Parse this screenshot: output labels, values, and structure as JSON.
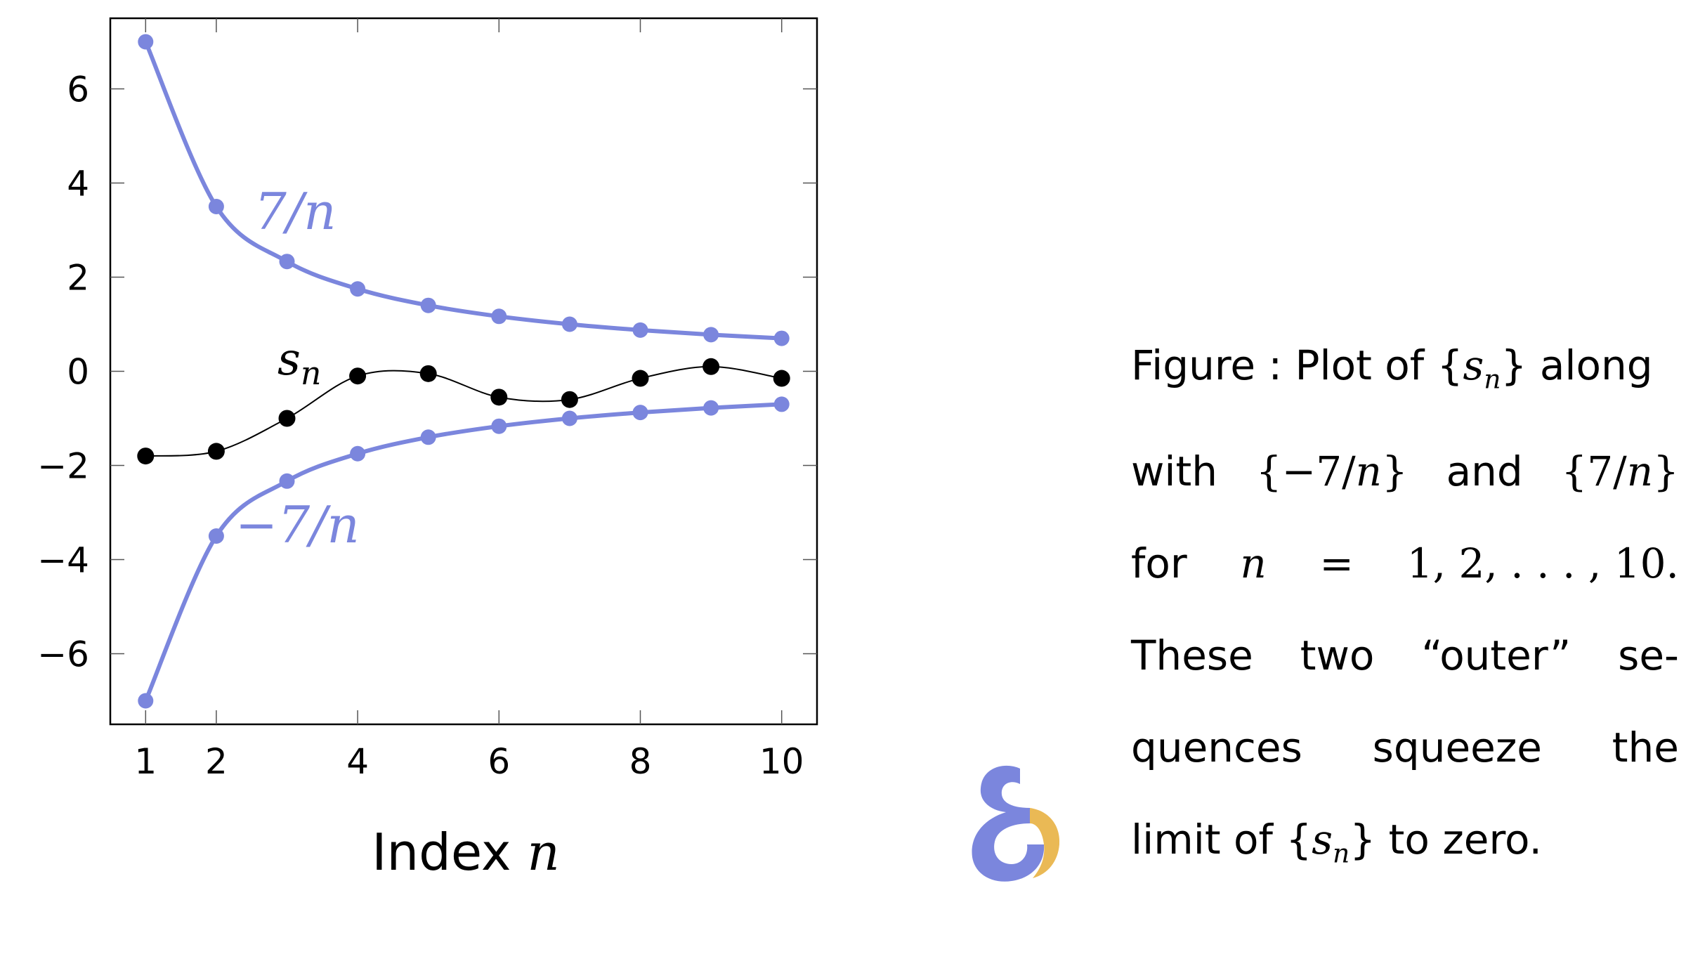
{
  "chart_data": {
    "type": "scatter",
    "x": [
      1,
      2,
      3,
      4,
      5,
      6,
      7,
      8,
      9,
      10
    ],
    "series": [
      {
        "name": "7/n",
        "values": [
          7,
          3.5,
          2.333,
          1.75,
          1.4,
          1.167,
          1,
          0.875,
          0.778,
          0.7
        ],
        "color": "#7b86dd"
      },
      {
        "name": "−7/n",
        "values": [
          -7,
          -3.5,
          -2.333,
          -1.75,
          -1.4,
          -1.167,
          -1,
          -0.875,
          -0.778,
          -0.7
        ],
        "color": "#7b86dd"
      },
      {
        "name": "s",
        "values": [
          -1.8,
          -1.7,
          -1.0,
          -0.1,
          -0.05,
          -0.55,
          -0.6,
          -0.15,
          0.1,
          -0.15
        ],
        "color": "#000000"
      }
    ],
    "xlabel_prefix": "Index ",
    "xlabel_var": "n",
    "xticks": [
      1,
      2,
      4,
      6,
      8,
      10
    ],
    "yticks": [
      6,
      4,
      2,
      0,
      -2,
      -4,
      -6
    ],
    "ytick_labels": [
      "6",
      "4",
      "2",
      "0",
      "−2",
      "−4",
      "−6"
    ],
    "xlim": [
      0.5,
      10.5
    ],
    "ylim": [
      -7.5,
      7.5
    ],
    "grid": false
  },
  "caption": {
    "l1": {
      "a": "Figure : Plot of {",
      "b": "s",
      "c": "n",
      "d": "} along"
    },
    "l2": {
      "a": "with",
      "b": "{−7/",
      "c": "n",
      "d": "}",
      "e": "and",
      "f": "{7/",
      "g": "n",
      "h": "}"
    },
    "l3": {
      "a": "for",
      "b": "n",
      "c": "=",
      "d": "1, 2, . . . , 10."
    },
    "l4": {
      "a": "These",
      "b": "two",
      "c": "“outer”",
      "d": "se-"
    },
    "l5": {
      "a": "quences",
      "b": "squeeze",
      "c": "the"
    },
    "l6": {
      "a": "limit of {",
      "b": "s",
      "c": "n",
      "d": "} to zero."
    }
  },
  "logo": {
    "name": "overleaf-logo",
    "colors": [
      "#7b86dd",
      "#eab955"
    ]
  }
}
